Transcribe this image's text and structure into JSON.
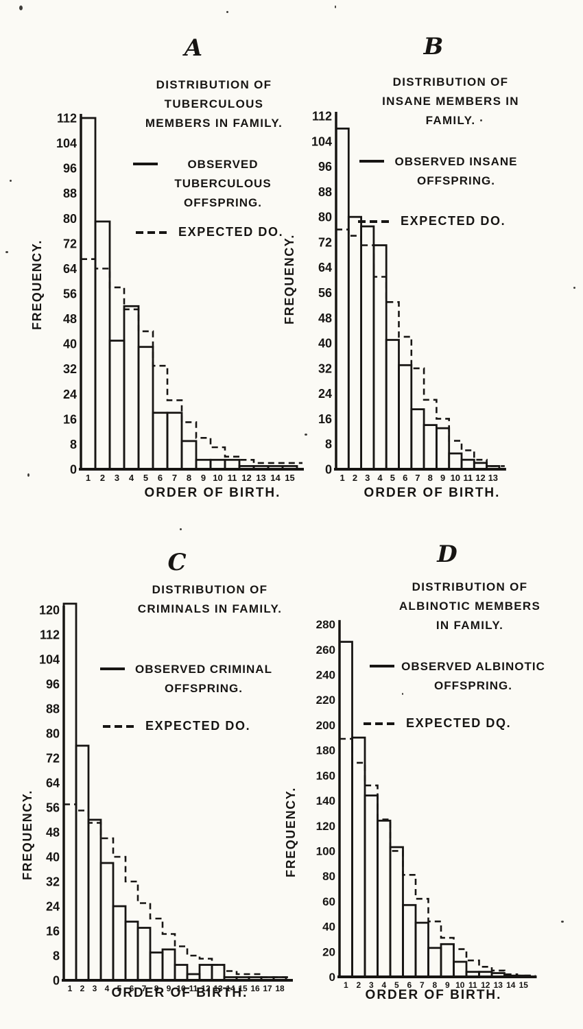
{
  "page": {
    "background": "#fbfaf5",
    "ink": "#171513",
    "description": "Scanned figure of four histograms comparing observed and expected offspring distributions by order of birth"
  },
  "figure": {
    "panels": [
      {
        "letter": "A",
        "title": "DISTRIBUTION OF\nTUBERCULOUS\nMEMBERS IN FAMILY.",
        "legend_observed": "OBSERVED\nTUBERCULOUS\nOFFSPRING.",
        "legend_expected": "EXPECTED DO.",
        "ylabel": "FREQUENCY.",
        "xlabel": "ORDER OF BIRTH."
      },
      {
        "letter": "B",
        "title": "DISTRIBUTION OF\nINSANE MEMBERS IN\nFAMILY.",
        "legend_observed": "OBSERVED INSANE\nOFFSPRING.",
        "legend_expected": "EXPECTED DO.",
        "ylabel": "FREQUENCY.",
        "xlabel": "ORDER OF BIRTH."
      },
      {
        "letter": "C",
        "title": "DISTRIBUTION OF\nCRIMINALS IN FAMILY.",
        "legend_observed": "OBSERVED CRIMINAL\nOFFSPRING.",
        "legend_expected": "EXPECTED DO.",
        "ylabel": "FREQUENCY.",
        "xlabel": "ORDER OF BIRTH."
      },
      {
        "letter": "D",
        "title": "DISTRIBUTION OF\nALBINOTIC MEMBERS\nIN FAMILY.",
        "legend_observed": "OBSERVED ALBINOTIC\nOFFSPRING.",
        "legend_expected": "EXPECTED DQ.",
        "ylabel": "FREQUENCY.",
        "xlabel": "ORDER OF BIRTH."
      }
    ]
  },
  "chart_data": [
    {
      "type": "bar",
      "panel": "A",
      "title": "DISTRIBUTION OF TUBERCULOUS MEMBERS IN FAMILY.",
      "xlabel": "ORDER OF BIRTH.",
      "ylabel": "FREQUENCY.",
      "categories": [
        1,
        2,
        3,
        4,
        5,
        6,
        7,
        8,
        9,
        10,
        11,
        12,
        13,
        14,
        15
      ],
      "series": [
        {
          "name": "OBSERVED TUBERCULOUS OFFSPRING.",
          "role": "observed",
          "style": "outlined-bars",
          "values": [
            112,
            79,
            41,
            52,
            39,
            18,
            18,
            9,
            3,
            3,
            3,
            1,
            1,
            1,
            1
          ]
        },
        {
          "name": "EXPECTED DO.",
          "role": "expected",
          "style": "dashed-step",
          "values": [
            67,
            64,
            58,
            51,
            44,
            33,
            22,
            15,
            10,
            7,
            4,
            3,
            2,
            2,
            2
          ]
        }
      ],
      "ylim": [
        0,
        112
      ],
      "ytick_step": 8,
      "grid": false,
      "legend_position": "upper right"
    },
    {
      "type": "bar",
      "panel": "B",
      "title": "DISTRIBUTION OF INSANE MEMBERS IN FAMILY.",
      "xlabel": "ORDER OF BIRTH.",
      "ylabel": "FREQUENCY.",
      "categories": [
        1,
        2,
        3,
        4,
        5,
        6,
        7,
        8,
        9,
        10,
        11,
        12,
        13
      ],
      "series": [
        {
          "name": "OBSERVED INSANE OFFSPRING.",
          "role": "observed",
          "style": "outlined-bars",
          "values": [
            108,
            80,
            77,
            71,
            41,
            33,
            19,
            14,
            13,
            5,
            3,
            2,
            1
          ]
        },
        {
          "name": "EXPECTED DO.",
          "role": "expected",
          "style": "dashed-step",
          "values": [
            76,
            74,
            71,
            61,
            53,
            42,
            32,
            22,
            16,
            9,
            6,
            3,
            1
          ]
        }
      ],
      "ylim": [
        0,
        112
      ],
      "ytick_step": 8,
      "grid": false,
      "legend_position": "upper right"
    },
    {
      "type": "bar",
      "panel": "C",
      "title": "DISTRIBUTION OF CRIMINALS IN FAMILY.",
      "xlabel": "ORDER OF BIRTH.",
      "ylabel": "FREQUENCY.",
      "categories": [
        1,
        2,
        3,
        4,
        5,
        6,
        7,
        8,
        9,
        10,
        11,
        12,
        13,
        14,
        15,
        16,
        17,
        18
      ],
      "series": [
        {
          "name": "OBSERVED CRIMINAL OFFSPRING.",
          "role": "observed",
          "style": "outlined-bars",
          "values": [
            122,
            76,
            52,
            38,
            24,
            19,
            17,
            9,
            10,
            5,
            2,
            5,
            5,
            1,
            1,
            1,
            1,
            1
          ]
        },
        {
          "name": "EXPECTED DO.",
          "role": "expected",
          "style": "dashed-step",
          "values": [
            57,
            55,
            51,
            46,
            40,
            32,
            25,
            20,
            15,
            11,
            8,
            7,
            5,
            3,
            2,
            2,
            1,
            1
          ]
        }
      ],
      "ylim": [
        0,
        120
      ],
      "ytick_step": 8,
      "grid": false,
      "legend_position": "upper right"
    },
    {
      "type": "bar",
      "panel": "D",
      "title": "DISTRIBUTION OF ALBINOTIC MEMBERS IN FAMILY.",
      "xlabel": "ORDER OF BIRTH.",
      "ylabel": "FREQUENCY.",
      "categories": [
        1,
        2,
        3,
        4,
        5,
        6,
        7,
        8,
        9,
        10,
        11,
        12,
        13,
        14,
        15
      ],
      "series": [
        {
          "name": "OBSERVED ALBINOTIC OFFSPRING.",
          "role": "observed",
          "style": "outlined-bars",
          "values": [
            266,
            190,
            144,
            124,
            103,
            57,
            43,
            23,
            26,
            12,
            4,
            4,
            3,
            1,
            1
          ]
        },
        {
          "name": "EXPECTED DQ.",
          "role": "expected",
          "style": "dashed-step",
          "values": [
            189,
            170,
            152,
            125,
            100,
            81,
            62,
            44,
            31,
            22,
            13,
            8,
            5,
            2,
            1
          ]
        }
      ],
      "ylim": [
        0,
        280
      ],
      "ytick_step": 20,
      "grid": false,
      "legend_position": "upper right"
    }
  ]
}
